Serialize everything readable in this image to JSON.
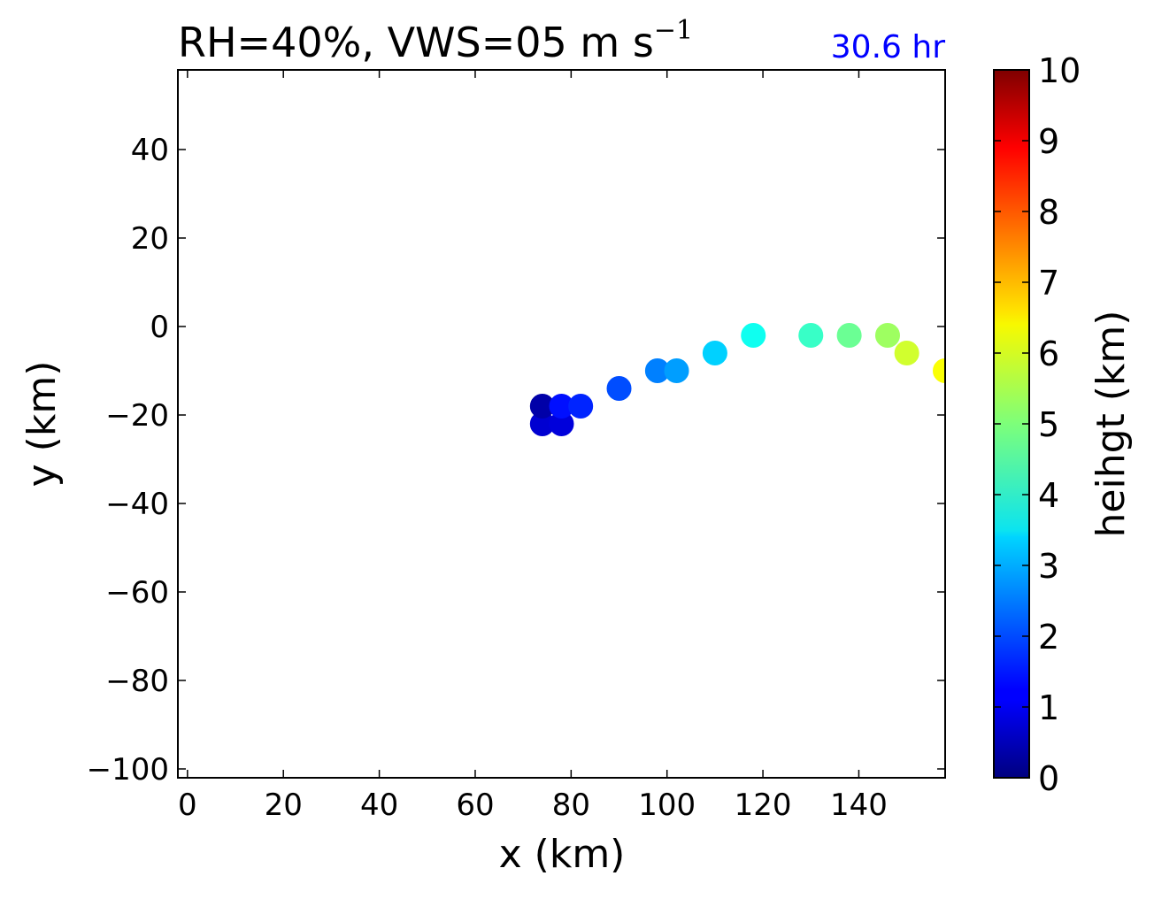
{
  "chart_data": {
    "type": "scatter",
    "title": "RH=40%, VWS=05 m s",
    "title_superscript": "−1",
    "time_label": "30.6 hr",
    "time_label_color": "#0000ff",
    "xlabel": "x (km)",
    "ylabel": "y (km)",
    "xlim": [
      -2,
      158
    ],
    "ylim": [
      -102,
      58
    ],
    "xticks": [
      0,
      20,
      40,
      60,
      80,
      100,
      120,
      140
    ],
    "xtick_labels": [
      "0",
      "20",
      "40",
      "60",
      "80",
      "100",
      "120",
      "140"
    ],
    "yticks": [
      -100,
      -80,
      -60,
      -40,
      -20,
      0,
      20,
      40
    ],
    "ytick_labels": [
      "−100",
      "−80",
      "−60",
      "−40",
      "−20",
      "0",
      "20",
      "40"
    ],
    "grid": false,
    "colorbar": {
      "label": "heihgt (km)",
      "colormap": "jet",
      "range": [
        0,
        10
      ],
      "ticks": [
        0,
        1,
        2,
        3,
        4,
        5,
        6,
        7,
        8,
        9,
        10
      ],
      "tick_labels": [
        "0",
        "1",
        "2",
        "3",
        "4",
        "5",
        "6",
        "7",
        "8",
        "9",
        "10"
      ]
    },
    "points": [
      {
        "x": 74,
        "y": -22,
        "height": 0.8
      },
      {
        "x": 78,
        "y": -22,
        "height": 0.9
      },
      {
        "x": 74,
        "y": -18,
        "height": 0.4
      },
      {
        "x": 78,
        "y": -18,
        "height": 1.4
      },
      {
        "x": 82,
        "y": -18,
        "height": 1.6
      },
      {
        "x": 90,
        "y": -14,
        "height": 2.0
      },
      {
        "x": 98,
        "y": -10,
        "height": 2.5
      },
      {
        "x": 102,
        "y": -10,
        "height": 2.8
      },
      {
        "x": 110,
        "y": -6,
        "height": 3.3
      },
      {
        "x": 118,
        "y": -2,
        "height": 3.9
      },
      {
        "x": 130,
        "y": -2,
        "height": 4.3
      },
      {
        "x": 138,
        "y": -2,
        "height": 4.8
      },
      {
        "x": 146,
        "y": -2,
        "height": 5.3
      },
      {
        "x": 150,
        "y": -6,
        "height": 5.8
      },
      {
        "x": 158,
        "y": -10,
        "height": 6.2
      }
    ]
  }
}
